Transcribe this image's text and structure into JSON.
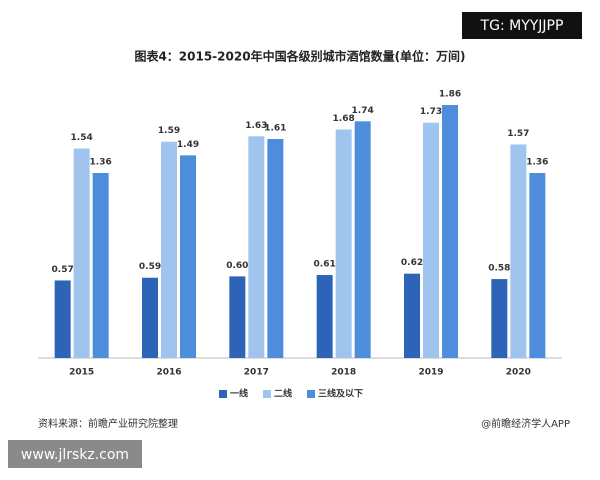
{
  "chart_data": {
    "type": "bar",
    "title": "图表4：2015-2020年中国各级别城市酒馆数量(单位：万间)",
    "categories": [
      "2015",
      "2016",
      "2017",
      "2018",
      "2019",
      "2020"
    ],
    "series": [
      {
        "name": "一线",
        "color": "#2d64b8",
        "values": [
          0.57,
          0.59,
          0.6,
          0.61,
          0.62,
          0.58
        ],
        "value_labels": [
          "0.57",
          "0.59",
          "0.60",
          "0.61",
          "0.62",
          "0.58"
        ]
      },
      {
        "name": "二线",
        "color": "#9fc4ee",
        "values": [
          1.54,
          1.59,
          1.63,
          1.68,
          1.73,
          1.57
        ],
        "value_labels": [
          "1.54",
          "1.59",
          "1.63",
          "1.68",
          "1.73",
          "1.57"
        ]
      },
      {
        "name": "三线及以下",
        "color": "#4d8ddb",
        "values": [
          1.36,
          1.49,
          1.61,
          1.74,
          1.86,
          1.36
        ],
        "value_labels": [
          "1.36",
          "1.49",
          "1.61",
          "1.74",
          "1.86",
          "1.36"
        ]
      }
    ],
    "legend": "bottom"
  },
  "source": "资料来源：前瞻产业研究院整理",
  "credit": "@前瞻经济学人APP",
  "watermarks": [
    "TG: MYYJJPP",
    "www.jlrskz.com"
  ]
}
